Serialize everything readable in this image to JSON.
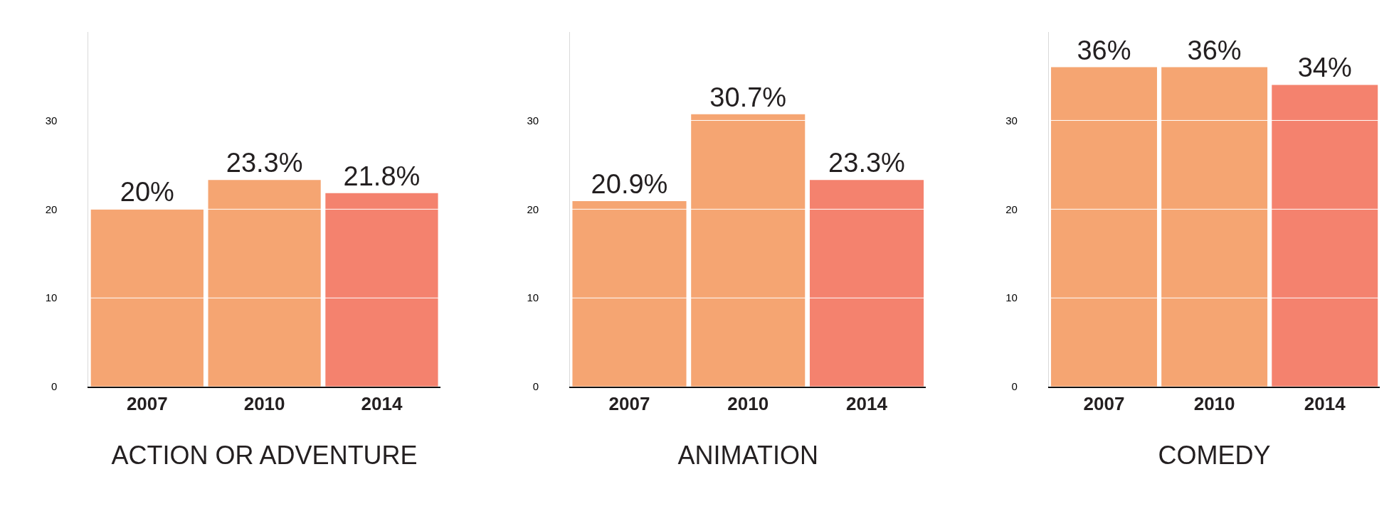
{
  "chart_data": [
    {
      "type": "bar",
      "xlabel": "ACTION OR ADVENTURE",
      "categories": [
        "2007",
        "2010",
        "2014"
      ],
      "values": [
        20,
        23.3,
        21.8
      ],
      "value_labels": [
        "20%",
        "23.3%",
        "21.8%"
      ],
      "colors": [
        "#f5a572",
        "#f5a572",
        "#f4826e"
      ],
      "ylim": [
        0,
        40
      ],
      "yticks": [
        0,
        10,
        20,
        30
      ],
      "grid": "y"
    },
    {
      "type": "bar",
      "xlabel": "ANIMATION",
      "categories": [
        "2007",
        "2010",
        "2014"
      ],
      "values": [
        20.9,
        30.7,
        23.3
      ],
      "value_labels": [
        "20.9%",
        "30.7%",
        "23.3%"
      ],
      "colors": [
        "#f5a572",
        "#f5a572",
        "#f4826e"
      ],
      "ylim": [
        0,
        40
      ],
      "yticks": [
        0,
        10,
        20,
        30
      ],
      "grid": "y"
    },
    {
      "type": "bar",
      "xlabel": "COMEDY",
      "categories": [
        "2007",
        "2010",
        "2014"
      ],
      "values": [
        36,
        36,
        34
      ],
      "value_labels": [
        "36%",
        "36%",
        "34%"
      ],
      "colors": [
        "#f5a572",
        "#f5a572",
        "#f4826e"
      ],
      "ylim": [
        0,
        40
      ],
      "yticks": [
        0,
        10,
        20,
        30
      ],
      "grid": "y"
    }
  ]
}
